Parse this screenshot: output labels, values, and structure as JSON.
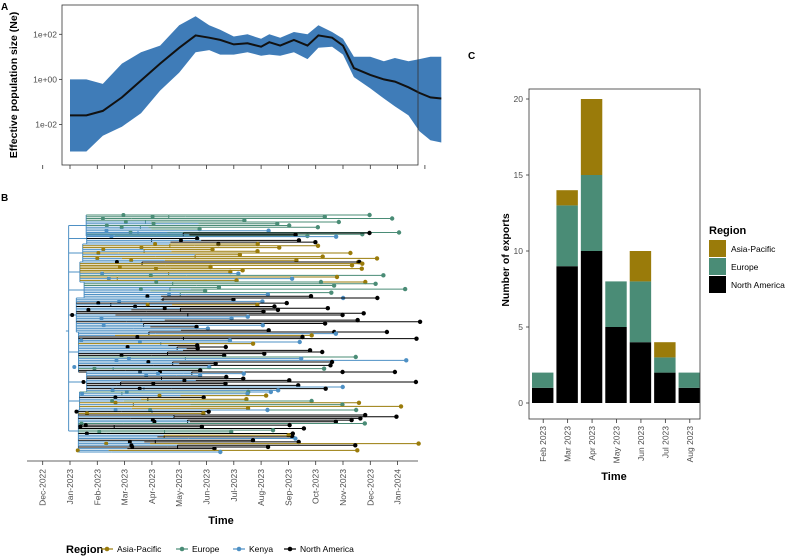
{
  "panels": {
    "a": {
      "label": "A"
    },
    "b": {
      "label": "B"
    },
    "c": {
      "label": "C"
    }
  },
  "colors": {
    "asia_pacific": "#9a7b0a",
    "europe": "#4a8c76",
    "kenya": "#4e90c4",
    "north_america": "#000000",
    "ribbon": "#3f7cb8",
    "median": "#111111"
  },
  "chart_data": [
    {
      "id": "A",
      "type": "area",
      "title": "",
      "ylabel": "Effective population size (Ne)",
      "xlabel": "",
      "y_scale": "log10",
      "ylim_log10": [
        -3.8,
        3.3
      ],
      "yticks": [
        {
          "log10": 2,
          "label": "1e+02"
        },
        {
          "log10": 0,
          "label": "1e+00"
        },
        {
          "log10": -2,
          "label": "1e-02"
        }
      ],
      "x_month_index": [
        0,
        0.6,
        1.2,
        1.9,
        2.6,
        3.3,
        4.0,
        4.6,
        5.1,
        5.5,
        6.0,
        6.5,
        7.0,
        7.3,
        7.7,
        8.2,
        8.7,
        9.1,
        9.6,
        10.0,
        10.4,
        11.0,
        11.5,
        11.9,
        12.4,
        12.8,
        13.2,
        13.6
      ],
      "ne_median_log10": [
        -1.6,
        -1.6,
        -1.4,
        -0.8,
        -0.05,
        0.7,
        1.4,
        1.95,
        1.85,
        1.75,
        1.55,
        1.6,
        1.45,
        1.65,
        1.5,
        1.75,
        1.5,
        1.95,
        1.85,
        1.5,
        0.5,
        0.2,
        0.0,
        -0.1,
        -0.35,
        -0.6,
        -0.8,
        -0.85
      ],
      "ne_upper_log10": [
        0.0,
        0.0,
        -0.2,
        0.7,
        1.2,
        1.5,
        2.4,
        2.8,
        2.4,
        2.2,
        1.9,
        2.0,
        1.8,
        2.0,
        1.85,
        2.1,
        2.0,
        2.4,
        2.1,
        1.8,
        1.0,
        1.0,
        0.8,
        0.95,
        0.8,
        0.9,
        1.0,
        1.0
      ],
      "ne_lower_log10": [
        -3.2,
        -3.2,
        -2.5,
        -2.1,
        -1.5,
        -0.5,
        0.3,
        1.2,
        1.3,
        1.1,
        1.1,
        1.2,
        1.05,
        1.1,
        1.05,
        1.2,
        0.9,
        1.4,
        1.45,
        1.1,
        0.1,
        -0.4,
        -0.85,
        -1.2,
        -1.6,
        -2.3,
        -2.7,
        -2.8
      ]
    },
    {
      "id": "B",
      "type": "tree",
      "xlabel": "Time",
      "x_tick_labels": [
        "Dec-2022",
        "Jan-2023",
        "Feb-2023",
        "Mar-2023",
        "Apr-2023",
        "May-2023",
        "Jun-2023",
        "Jul-2023",
        "Aug-2023",
        "Sep-2023",
        "Oct-2023",
        "Nov-2023",
        "Dec-2023",
        "Jan-2024"
      ],
      "legend": {
        "title": "Region",
        "position": "bottom",
        "entries": [
          "Asia-Pacific",
          "Europe",
          "Kenya",
          "North America"
        ]
      },
      "tip_count_approx": 400,
      "tip_date_range_months": [
        2.2,
        12.9
      ]
    },
    {
      "id": "C",
      "type": "bar",
      "stacked": true,
      "xlabel": "Time",
      "ylabel": "Number of exports",
      "categories": [
        "Feb 2023",
        "Mar 2023",
        "Apr 2023",
        "May 2023",
        "Jun 2023",
        "Jul 2023",
        "Aug 2023"
      ],
      "series": [
        {
          "name": "North America",
          "color_key": "north_america",
          "values": [
            1,
            9,
            10,
            5,
            4,
            2,
            1
          ]
        },
        {
          "name": "Europe",
          "color_key": "europe",
          "values": [
            1,
            4,
            5,
            3,
            4,
            1,
            1
          ]
        },
        {
          "name": "Asia-Pacific",
          "color_key": "asia_pacific",
          "values": [
            0,
            1,
            5,
            0,
            2,
            1,
            0
          ]
        }
      ],
      "ylim": [
        0,
        21
      ],
      "yticks": [
        0,
        5,
        10,
        15,
        20
      ],
      "legend": {
        "title": "Region",
        "position": "right",
        "entries": [
          "Asia-Pacific",
          "Europe",
          "North America"
        ]
      }
    }
  ]
}
